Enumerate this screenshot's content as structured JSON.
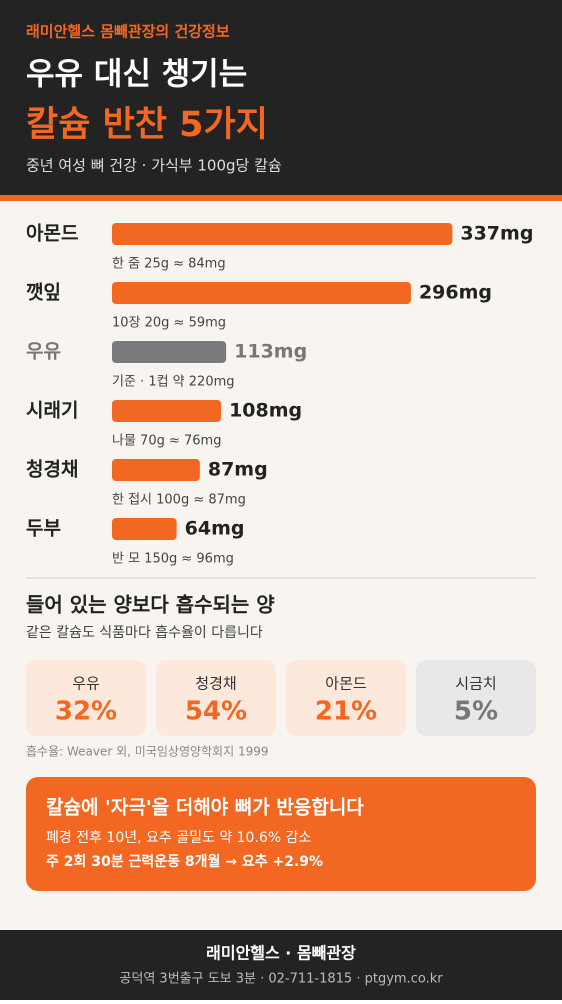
{
  "header": {
    "kicker": "래미안헬스 몸빼관장의 건강정보",
    "title_line1": "우유 대신 챙기는",
    "title_line2": "칼슘 반찬 5가지",
    "subtitle": "중년 여성 뼈 건강 · 가식부 100g당 칼슘"
  },
  "chart_data": {
    "type": "bar",
    "orientation": "horizontal",
    "categories": [
      "아몬드",
      "깻잎",
      "우유",
      "시래기",
      "청경채",
      "두부"
    ],
    "values": [
      337,
      296,
      113,
      108,
      87,
      64
    ],
    "value_labels": [
      "337mg",
      "296mg",
      "113mg",
      "108mg",
      "87mg",
      "64mg"
    ],
    "notes": [
      "한 줌 25g ≈ 84mg",
      "10장 20g ≈ 59mg",
      "기준 · 1컵 약 220mg",
      "나물 70g ≈ 76mg",
      "한 접시 100g ≈ 87mg",
      "반 모 150g ≈ 96mg"
    ],
    "colors": [
      "#f26722",
      "#f26722",
      "#7a7a7a",
      "#f26722",
      "#f26722",
      "#f26722"
    ]
  },
  "absorption": {
    "title": "들어 있는 양보다 흡수되는 양",
    "subtitle": "같은 칼슘도 식품마다 흡수율이 다릅니다",
    "items": [
      {
        "label": "우유",
        "value": "32%"
      },
      {
        "label": "청경채",
        "value": "54%"
      },
      {
        "label": "아몬드",
        "value": "21%"
      },
      {
        "label": "시금치",
        "value": "5%"
      }
    ],
    "source": "흡수율: Weaver 외, 미국임상영양학회지 1999"
  },
  "callout": {
    "title": "칼슘에 '자극'을 더해야 뼈가 반응합니다",
    "line1": "폐경 전후 10년, 요추 골밀도 약 10.6% 감소",
    "line2": "주 2회 30분 근력운동 8개월 → 요추 +2.9%"
  },
  "footer": {
    "name": "래미안헬스 · 몸빼관장",
    "info": "공덕역 3번출구 도보 3분 · 02-711-1815 · ptgym.co.kr"
  }
}
